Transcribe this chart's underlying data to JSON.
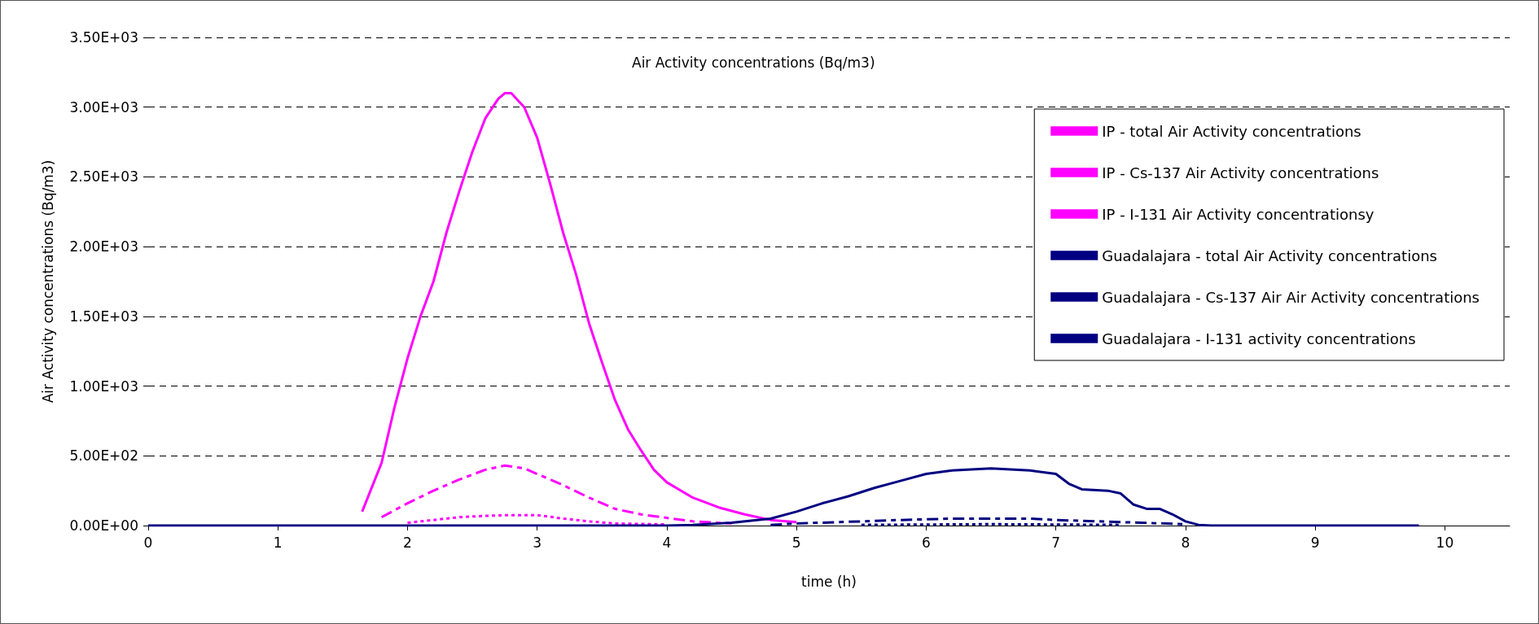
{
  "chart_data": {
    "type": "line",
    "title": "Air Activity concentrations (Bq/m3)",
    "xlabel": "time (h)",
    "ylabel": "Air Activity concentrations (Bq/m3)",
    "xlim": [
      0,
      10.5
    ],
    "xticks": [
      0,
      1,
      2,
      3,
      4,
      5,
      6,
      7,
      8,
      9,
      10
    ],
    "ylim": [
      0,
      3500
    ],
    "yticks": [
      {
        "value": 0,
        "label": "0.00E+00"
      },
      {
        "value": 500,
        "label": "5.00E+02"
      },
      {
        "value": 1000,
        "label": "1.00E+03"
      },
      {
        "value": 1500,
        "label": "1.50E+03"
      },
      {
        "value": 2000,
        "label": "2.00E+03"
      },
      {
        "value": 2500,
        "label": "2.50E+03"
      },
      {
        "value": 3000,
        "label": "3.00E+03"
      },
      {
        "value": 3500,
        "label": "3.50E+03"
      }
    ],
    "grid": "y",
    "legend": "top right",
    "marker": "none",
    "series": [
      {
        "name": "IP - total Air Activity concentrations",
        "color": "#ff00ff",
        "line_style": "solid",
        "x": [
          1.65,
          1.8,
          1.9,
          2,
          2.1,
          2.2,
          2.3,
          2.4,
          2.5,
          2.6,
          2.7,
          2.75,
          2.8,
          2.9,
          3,
          3.1,
          3.2,
          3.3,
          3.4,
          3.5,
          3.6,
          3.7,
          3.8,
          3.9,
          4,
          4.2,
          4.4,
          4.6,
          4.8,
          5
        ],
        "values": [
          100,
          450,
          850,
          1200,
          1500,
          1750,
          2100,
          2400,
          2680,
          2920,
          3060,
          3100,
          3100,
          3000,
          2780,
          2450,
          2100,
          1800,
          1450,
          1170,
          900,
          690,
          540,
          400,
          310,
          200,
          130,
          80,
          40,
          25
        ]
      },
      {
        "name": "IP - Cs-137 Air Activity concentrations",
        "color": "#ff00ff",
        "line_style": "dotted",
        "x": [
          2,
          2.2,
          2.4,
          2.6,
          2.8,
          3,
          3.2,
          3.4,
          3.6,
          4
        ],
        "values": [
          20,
          40,
          60,
          70,
          75,
          75,
          50,
          30,
          15,
          8
        ]
      },
      {
        "name": "IP - I-131 Air Activity concentrationsy",
        "color": "#ff00ff",
        "line_style": "dashed",
        "x": [
          1.8,
          2,
          2.2,
          2.4,
          2.6,
          2.75,
          2.9,
          3,
          3.2,
          3.4,
          3.6,
          3.8,
          4,
          4.2,
          4.5
        ],
        "values": [
          60,
          160,
          250,
          330,
          400,
          430,
          410,
          370,
          290,
          200,
          120,
          80,
          55,
          30,
          15
        ]
      },
      {
        "name": "Guadalajara - total Air Activity concentrations",
        "color": "#000080",
        "line_style": "solid",
        "x": [
          0,
          1,
          2,
          3,
          4,
          4.2,
          4.5,
          4.8,
          5,
          5.2,
          5.4,
          5.6,
          5.8,
          6,
          6.2,
          6.5,
          6.8,
          7,
          7.1,
          7.2,
          7.4,
          7.5,
          7.6,
          7.7,
          7.8,
          7.9,
          8,
          8.1,
          8.2,
          9,
          9.8
        ],
        "values": [
          0,
          0,
          0,
          0,
          0,
          5,
          20,
          50,
          100,
          160,
          210,
          270,
          320,
          370,
          395,
          410,
          395,
          370,
          300,
          260,
          250,
          230,
          150,
          120,
          120,
          80,
          30,
          5,
          0,
          0,
          0
        ]
      },
      {
        "name": "Guadalajara - Cs-137 Air Air Activity concentrations",
        "color": "#000080",
        "line_style": "dotted",
        "x": [
          5.5,
          6.5,
          7.5
        ],
        "values": [
          5,
          10,
          5
        ]
      },
      {
        "name": "Guadalajara - I-131 activity concentrations",
        "color": "#000080",
        "line_style": "dashed",
        "x": [
          4.8,
          5,
          5.5,
          5.8,
          6,
          6.2,
          6.8,
          7,
          7.5,
          8
        ],
        "values": [
          5,
          15,
          30,
          40,
          45,
          50,
          50,
          40,
          25,
          10
        ]
      }
    ]
  }
}
